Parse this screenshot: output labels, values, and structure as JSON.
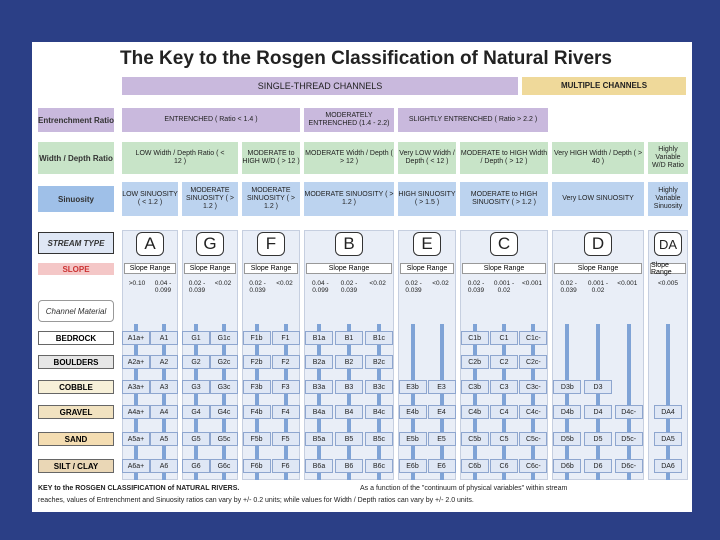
{
  "title": "The Key to the Rosgen Classification of Natural Rivers",
  "headers": {
    "single": "SINGLE-THREAD CHANNELS",
    "multiple": "MULTIPLE CHANNELS"
  },
  "row_labels": {
    "entrenchment": "Entrenchment Ratio",
    "wd": "Width / Depth Ratio",
    "sinuosity": "Sinuosity",
    "stream_type": "STREAM TYPE",
    "slope": "SLOPE",
    "channel_material": "Channel Material"
  },
  "entrenchment": [
    "ENTRENCHED ( Ratio < 1.4 )",
    "MODERATELY ENTRENCHED (1.4 - 2.2)",
    "SLIGHTLY ENTRENCHED ( Ratio > 2.2 )"
  ],
  "wd": [
    "LOW Width / Depth Ratio ( < 12 )",
    "MODERATE to HIGH W/D ( > 12 )",
    "MODERATE Width / Depth ( > 12 )",
    "Very LOW Width / Depth ( < 12 )",
    "MODERATE to HIGH Width / Depth ( > 12 )",
    "Very HIGH Width / Depth ( > 40 )",
    "Highly Variable W/D Ratio"
  ],
  "sinuosity": [
    "LOW SINUOSITY ( < 1.2 )",
    "MODERATE SINUOSITY ( > 1.2 )",
    "MODERATE SINUOSITY ( > 1.2 )",
    "MODERATE SINUOSITY ( > 1.2 )",
    "HIGH SINUOSITY ( > 1.5 )",
    "MODERATE to HIGH SINUOSITY ( > 1.2 )",
    "Very LOW SINUOSITY",
    "Highly Variable Sinuosity"
  ],
  "types": [
    "A",
    "G",
    "F",
    "B",
    "E",
    "C",
    "D",
    "DA"
  ],
  "slope_range_label": "Slope Range",
  "slopes": [
    [
      ">0.10",
      "0.04 - 0.099"
    ],
    [
      "0.02 - 0.039",
      "<0.02"
    ],
    [
      "0.02 - 0.039",
      "<0.02"
    ],
    [
      "0.04 - 0.099",
      "0.02 - 0.039",
      "<0.02"
    ],
    [
      "0.02 - 0.039",
      "<0.02"
    ],
    [
      "0.02 - 0.039",
      "0.001 - 0.02",
      "<0.001"
    ],
    [
      "0.02 - 0.039",
      "0.001 - 0.02",
      "<0.001"
    ],
    [
      "<0.005"
    ]
  ],
  "materials": [
    "BEDROCK",
    "BOULDERS",
    "COBBLE",
    "GRAVEL",
    "SAND",
    "SILT / CLAY"
  ],
  "cells": {
    "A": [
      [
        "A1a+",
        "A1"
      ],
      [
        "A2a+",
        "A2"
      ],
      [
        "A3a+",
        "A3"
      ],
      [
        "A4a+",
        "A4"
      ],
      [
        "A5a+",
        "A5"
      ],
      [
        "A6a+",
        "A6"
      ]
    ],
    "G": [
      [
        "G1",
        "G1c"
      ],
      [
        "G2",
        "G2c"
      ],
      [
        "G3",
        "G3c"
      ],
      [
        "G4",
        "G4c"
      ],
      [
        "G5",
        "G5c"
      ],
      [
        "G6",
        "G6c"
      ]
    ],
    "F": [
      [
        "F1b",
        "F1"
      ],
      [
        "F2b",
        "F2"
      ],
      [
        "F3b",
        "F3"
      ],
      [
        "F4b",
        "F4"
      ],
      [
        "F5b",
        "F5"
      ],
      [
        "F6b",
        "F6"
      ]
    ],
    "B": [
      [
        "B1a",
        "B1",
        "B1c"
      ],
      [
        "B2a",
        "B2",
        "B2c"
      ],
      [
        "B3a",
        "B3",
        "B3c"
      ],
      [
        "B4a",
        "B4",
        "B4c"
      ],
      [
        "B5a",
        "B5",
        "B5c"
      ],
      [
        "B6a",
        "B6",
        "B6c"
      ]
    ],
    "E": [
      [
        "",
        ""
      ],
      [
        "",
        ""
      ],
      [
        "E3b",
        "E3"
      ],
      [
        "E4b",
        "E4"
      ],
      [
        "E5b",
        "E5"
      ],
      [
        "E6b",
        "E6"
      ]
    ],
    "C": [
      [
        "C1b",
        "C1",
        "C1c-"
      ],
      [
        "C2b",
        "C2",
        "C2c-"
      ],
      [
        "C3b",
        "C3",
        "C3c-"
      ],
      [
        "C4b",
        "C4",
        "C4c-"
      ],
      [
        "C5b",
        "C5",
        "C5c-"
      ],
      [
        "C6b",
        "C6",
        "C6c-"
      ]
    ],
    "D": [
      [
        "",
        "",
        ""
      ],
      [
        "",
        "",
        ""
      ],
      [
        "D3b",
        "D3",
        ""
      ],
      [
        "D4b",
        "D4",
        "D4c-"
      ],
      [
        "D5b",
        "D5",
        "D5c-"
      ],
      [
        "D6b",
        "D6",
        "D6c-"
      ]
    ],
    "DA": [
      [
        ""
      ],
      [
        ""
      ],
      [
        ""
      ],
      [
        "DA4"
      ],
      [
        "DA5"
      ],
      [
        "DA6"
      ]
    ]
  },
  "footer": {
    "left": "KEY to the ROSGEN CLASSIFICATION of NATURAL RIVERS.",
    "right": "As a function of the \"continuum of physical variables\" within stream",
    "line2": "reaches, values of Entrenchment and Sinuosity ratios can vary by +/- 0.2 units; while values for Width / Depth ratios can vary by +/- 2.0 units."
  },
  "colors": {
    "background": "#2b3f86",
    "purple": "#c9b9dd",
    "gold": "#efd99a",
    "green": "#c8e4c8",
    "blue": "#bcd3ef"
  }
}
